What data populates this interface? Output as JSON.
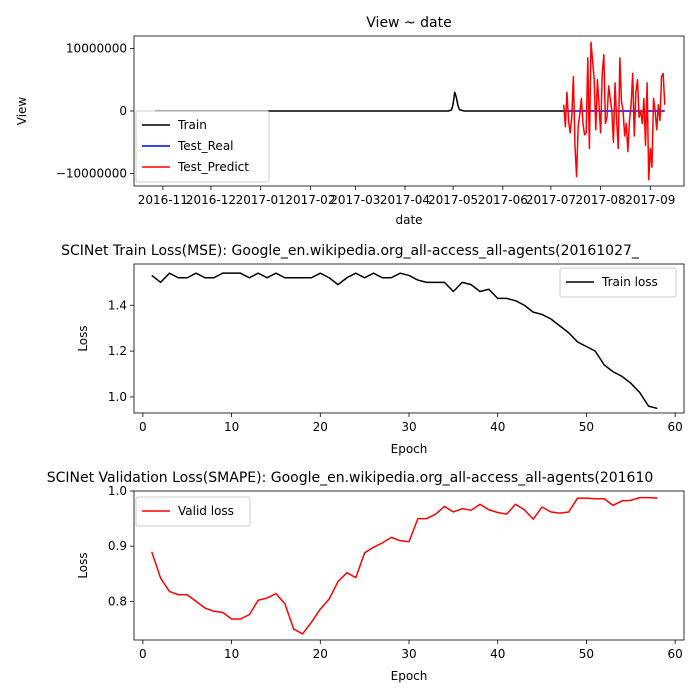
{
  "chart_data": [
    {
      "type": "line",
      "title": "View ~ date",
      "xlabel": "date",
      "ylabel": "View",
      "ylim": [
        -12000000,
        12000000
      ],
      "y_ticks": [
        "10000000",
        "0",
        "−10000000"
      ],
      "x_ticks": [
        "2016-11",
        "2016-12",
        "2017-01",
        "2017-02",
        "2017-03",
        "2017-04",
        "2017-05",
        "2017-06",
        "2017-07",
        "2017-08",
        "2017-09"
      ],
      "legend_position": "lower-left",
      "series": [
        {
          "name": "Train",
          "color": "#000000",
          "x": [
            "2016-10-27",
            "2017-04-28",
            "2017-04-30",
            "2017-05-01",
            "2017-05-02",
            "2017-05-03",
            "2017-05-04",
            "2017-05-05",
            "2017-05-08",
            "2017-07-09"
          ],
          "y": [
            0,
            0,
            150000,
            1100000,
            3000000,
            2200000,
            900000,
            200000,
            0,
            0
          ]
        },
        {
          "name": "Test_Real",
          "color": "#0000ff",
          "x": [
            "2017-07-09",
            "2017-09-10"
          ],
          "y": [
            0,
            0
          ]
        },
        {
          "name": "Test_Predict",
          "color": "#ff0000",
          "x": [
            "2017-07-09",
            "2017-07-10",
            "2017-07-11",
            "2017-07-12",
            "2017-07-13",
            "2017-07-14",
            "2017-07-15",
            "2017-07-16",
            "2017-07-17",
            "2017-07-18",
            "2017-07-19",
            "2017-07-20",
            "2017-07-21",
            "2017-07-22",
            "2017-07-23",
            "2017-07-24",
            "2017-07-25",
            "2017-07-26",
            "2017-07-27",
            "2017-07-28",
            "2017-07-29",
            "2017-07-30",
            "2017-07-31",
            "2017-08-01",
            "2017-08-02",
            "2017-08-03",
            "2017-08-04",
            "2017-08-05",
            "2017-08-06",
            "2017-08-07",
            "2017-08-08",
            "2017-08-09",
            "2017-08-10",
            "2017-08-11",
            "2017-08-12",
            "2017-08-13",
            "2017-08-14",
            "2017-08-15",
            "2017-08-16",
            "2017-08-17",
            "2017-08-18",
            "2017-08-19",
            "2017-08-20",
            "2017-08-21",
            "2017-08-22",
            "2017-08-23",
            "2017-08-24",
            "2017-08-25",
            "2017-08-26",
            "2017-08-27",
            "2017-08-28",
            "2017-08-29",
            "2017-08-30",
            "2017-08-31",
            "2017-09-01",
            "2017-09-02",
            "2017-09-03",
            "2017-09-04",
            "2017-09-05",
            "2017-09-06",
            "2017-09-07",
            "2017-09-08",
            "2017-09-09",
            "2017-09-10"
          ],
          "y": [
            1000000,
            -2500000,
            3000000,
            -1500000,
            -3500000,
            -1000000,
            5500000,
            -5500000,
            -10500000,
            -2500000,
            -500000,
            2000000,
            -2000000,
            -3800000,
            -3500000,
            8500000,
            -6000000,
            11000000,
            8000000,
            5000000,
            -3000000,
            5000000,
            1000000,
            -3500000,
            6000000,
            9000000,
            -2000000,
            -1000000,
            4000000,
            2000000,
            0,
            -5000000,
            4500000,
            -1500000,
            -6000000,
            8500000,
            1500000,
            0,
            -4000000,
            -2000000,
            -6500000,
            -1500000,
            1000000,
            6000000,
            -4000000,
            3000000,
            5000000,
            -1000000,
            0,
            -2000000,
            2000000,
            -5500000,
            4500000,
            -11000000,
            -6000000,
            -9000000,
            2000000,
            0,
            -3000000,
            1000000,
            -1500000,
            5500000,
            6000000,
            1000000
          ]
        }
      ]
    },
    {
      "type": "line",
      "title": "SCINet Train Loss(MSE): Google_en.wikipedia.org_all-access_all-agents(20161027_",
      "xlabel": "Epoch",
      "ylabel": "Loss",
      "xlim": [
        -1,
        61
      ],
      "ylim": [
        0.93,
        1.58
      ],
      "x_ticks": [
        "0",
        "10",
        "20",
        "30",
        "40",
        "50",
        "60"
      ],
      "y_ticks": [
        "1.0",
        "1.2",
        "1.4"
      ],
      "legend_position": "upper-right",
      "series": [
        {
          "name": "Train loss",
          "color": "#000000",
          "x": [
            1,
            2,
            3,
            4,
            5,
            6,
            7,
            8,
            9,
            10,
            11,
            12,
            13,
            14,
            15,
            16,
            17,
            18,
            19,
            20,
            21,
            22,
            23,
            24,
            25,
            26,
            27,
            28,
            29,
            30,
            31,
            32,
            33,
            34,
            35,
            36,
            37,
            38,
            39,
            40,
            41,
            42,
            43,
            44,
            45,
            46,
            47,
            48,
            49,
            50,
            51,
            52,
            53,
            54,
            55,
            56,
            57,
            58
          ],
          "y": [
            1.53,
            1.5,
            1.54,
            1.52,
            1.52,
            1.54,
            1.52,
            1.52,
            1.54,
            1.54,
            1.54,
            1.52,
            1.54,
            1.52,
            1.54,
            1.52,
            1.52,
            1.52,
            1.52,
            1.54,
            1.52,
            1.49,
            1.52,
            1.54,
            1.52,
            1.54,
            1.52,
            1.52,
            1.54,
            1.53,
            1.51,
            1.5,
            1.5,
            1.5,
            1.46,
            1.5,
            1.49,
            1.46,
            1.47,
            1.43,
            1.43,
            1.42,
            1.4,
            1.37,
            1.36,
            1.34,
            1.31,
            1.28,
            1.24,
            1.22,
            1.2,
            1.14,
            1.11,
            1.09,
            1.06,
            1.02,
            0.96,
            0.95
          ]
        }
      ]
    },
    {
      "type": "line",
      "title": "SCINet Validation Loss(SMAPE): Google_en.wikipedia.org_all-access_all-agents(201610",
      "xlabel": "Epoch",
      "ylabel": "Loss",
      "xlim": [
        -1,
        61
      ],
      "ylim": [
        0.73,
        1.0
      ],
      "x_ticks": [
        "0",
        "10",
        "20",
        "30",
        "40",
        "50",
        "60"
      ],
      "y_ticks": [
        "0.8",
        "0.9",
        "1.0"
      ],
      "legend_position": "upper-left",
      "series": [
        {
          "name": "Valid loss",
          "color": "#ff0000",
          "x": [
            1,
            2,
            3,
            4,
            5,
            6,
            7,
            8,
            9,
            10,
            11,
            12,
            13,
            14,
            15,
            16,
            17,
            18,
            19,
            20,
            21,
            22,
            23,
            24,
            25,
            26,
            27,
            28,
            29,
            30,
            31,
            32,
            33,
            34,
            35,
            36,
            37,
            38,
            39,
            40,
            41,
            42,
            43,
            44,
            45,
            46,
            47,
            48,
            49,
            50,
            51,
            52,
            53,
            54,
            55,
            56,
            57,
            58
          ],
          "y": [
            0.89,
            0.842,
            0.818,
            0.812,
            0.812,
            0.8,
            0.788,
            0.782,
            0.78,
            0.768,
            0.768,
            0.776,
            0.802,
            0.806,
            0.814,
            0.796,
            0.75,
            0.741,
            0.762,
            0.786,
            0.804,
            0.836,
            0.852,
            0.843,
            0.888,
            0.898,
            0.906,
            0.916,
            0.91,
            0.908,
            0.95,
            0.95,
            0.958,
            0.972,
            0.962,
            0.968,
            0.965,
            0.976,
            0.966,
            0.961,
            0.958,
            0.976,
            0.966,
            0.949,
            0.971,
            0.962,
            0.96,
            0.962,
            0.987,
            0.987,
            0.986,
            0.986,
            0.974,
            0.982,
            0.983,
            0.988,
            0.988,
            0.987
          ]
        }
      ]
    }
  ]
}
